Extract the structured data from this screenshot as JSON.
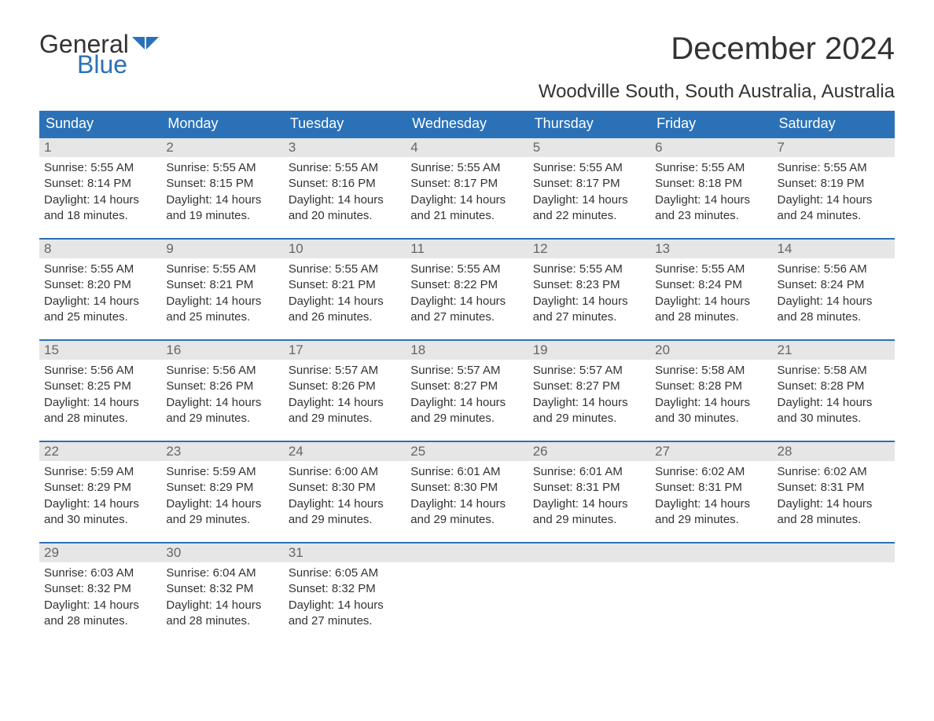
{
  "logo": {
    "general": "General",
    "blue": "Blue",
    "flag_color": "#2b71b8"
  },
  "title": "December 2024",
  "location": "Woodville South, South Australia, Australia",
  "colors": {
    "header_bg": "#2b71b8",
    "header_text": "#ffffff",
    "daynum_bg": "#e6e6e6",
    "daynum_text": "#666666",
    "body_text": "#333333",
    "row_border": "#2b71b8",
    "page_bg": "#ffffff"
  },
  "typography": {
    "title_fontsize": 40,
    "location_fontsize": 24,
    "dow_fontsize": 18,
    "daynum_fontsize": 17,
    "body_fontsize": 15
  },
  "days_of_week": [
    "Sunday",
    "Monday",
    "Tuesday",
    "Wednesday",
    "Thursday",
    "Friday",
    "Saturday"
  ],
  "labels": {
    "sunrise": "Sunrise:",
    "sunset": "Sunset:",
    "daylight": "Daylight:"
  },
  "weeks": [
    [
      {
        "n": "1",
        "sunrise": "5:55 AM",
        "sunset": "8:14 PM",
        "daylight": "14 hours and 18 minutes."
      },
      {
        "n": "2",
        "sunrise": "5:55 AM",
        "sunset": "8:15 PM",
        "daylight": "14 hours and 19 minutes."
      },
      {
        "n": "3",
        "sunrise": "5:55 AM",
        "sunset": "8:16 PM",
        "daylight": "14 hours and 20 minutes."
      },
      {
        "n": "4",
        "sunrise": "5:55 AM",
        "sunset": "8:17 PM",
        "daylight": "14 hours and 21 minutes."
      },
      {
        "n": "5",
        "sunrise": "5:55 AM",
        "sunset": "8:17 PM",
        "daylight": "14 hours and 22 minutes."
      },
      {
        "n": "6",
        "sunrise": "5:55 AM",
        "sunset": "8:18 PM",
        "daylight": "14 hours and 23 minutes."
      },
      {
        "n": "7",
        "sunrise": "5:55 AM",
        "sunset": "8:19 PM",
        "daylight": "14 hours and 24 minutes."
      }
    ],
    [
      {
        "n": "8",
        "sunrise": "5:55 AM",
        "sunset": "8:20 PM",
        "daylight": "14 hours and 25 minutes."
      },
      {
        "n": "9",
        "sunrise": "5:55 AM",
        "sunset": "8:21 PM",
        "daylight": "14 hours and 25 minutes."
      },
      {
        "n": "10",
        "sunrise": "5:55 AM",
        "sunset": "8:21 PM",
        "daylight": "14 hours and 26 minutes."
      },
      {
        "n": "11",
        "sunrise": "5:55 AM",
        "sunset": "8:22 PM",
        "daylight": "14 hours and 27 minutes."
      },
      {
        "n": "12",
        "sunrise": "5:55 AM",
        "sunset": "8:23 PM",
        "daylight": "14 hours and 27 minutes."
      },
      {
        "n": "13",
        "sunrise": "5:55 AM",
        "sunset": "8:24 PM",
        "daylight": "14 hours and 28 minutes."
      },
      {
        "n": "14",
        "sunrise": "5:56 AM",
        "sunset": "8:24 PM",
        "daylight": "14 hours and 28 minutes."
      }
    ],
    [
      {
        "n": "15",
        "sunrise": "5:56 AM",
        "sunset": "8:25 PM",
        "daylight": "14 hours and 28 minutes."
      },
      {
        "n": "16",
        "sunrise": "5:56 AM",
        "sunset": "8:26 PM",
        "daylight": "14 hours and 29 minutes."
      },
      {
        "n": "17",
        "sunrise": "5:57 AM",
        "sunset": "8:26 PM",
        "daylight": "14 hours and 29 minutes."
      },
      {
        "n": "18",
        "sunrise": "5:57 AM",
        "sunset": "8:27 PM",
        "daylight": "14 hours and 29 minutes."
      },
      {
        "n": "19",
        "sunrise": "5:57 AM",
        "sunset": "8:27 PM",
        "daylight": "14 hours and 29 minutes."
      },
      {
        "n": "20",
        "sunrise": "5:58 AM",
        "sunset": "8:28 PM",
        "daylight": "14 hours and 30 minutes."
      },
      {
        "n": "21",
        "sunrise": "5:58 AM",
        "sunset": "8:28 PM",
        "daylight": "14 hours and 30 minutes."
      }
    ],
    [
      {
        "n": "22",
        "sunrise": "5:59 AM",
        "sunset": "8:29 PM",
        "daylight": "14 hours and 30 minutes."
      },
      {
        "n": "23",
        "sunrise": "5:59 AM",
        "sunset": "8:29 PM",
        "daylight": "14 hours and 29 minutes."
      },
      {
        "n": "24",
        "sunrise": "6:00 AM",
        "sunset": "8:30 PM",
        "daylight": "14 hours and 29 minutes."
      },
      {
        "n": "25",
        "sunrise": "6:01 AM",
        "sunset": "8:30 PM",
        "daylight": "14 hours and 29 minutes."
      },
      {
        "n": "26",
        "sunrise": "6:01 AM",
        "sunset": "8:31 PM",
        "daylight": "14 hours and 29 minutes."
      },
      {
        "n": "27",
        "sunrise": "6:02 AM",
        "sunset": "8:31 PM",
        "daylight": "14 hours and 29 minutes."
      },
      {
        "n": "28",
        "sunrise": "6:02 AM",
        "sunset": "8:31 PM",
        "daylight": "14 hours and 28 minutes."
      }
    ],
    [
      {
        "n": "29",
        "sunrise": "6:03 AM",
        "sunset": "8:32 PM",
        "daylight": "14 hours and 28 minutes."
      },
      {
        "n": "30",
        "sunrise": "6:04 AM",
        "sunset": "8:32 PM",
        "daylight": "14 hours and 28 minutes."
      },
      {
        "n": "31",
        "sunrise": "6:05 AM",
        "sunset": "8:32 PM",
        "daylight": "14 hours and 27 minutes."
      },
      {
        "empty": true
      },
      {
        "empty": true
      },
      {
        "empty": true
      },
      {
        "empty": true
      }
    ]
  ]
}
